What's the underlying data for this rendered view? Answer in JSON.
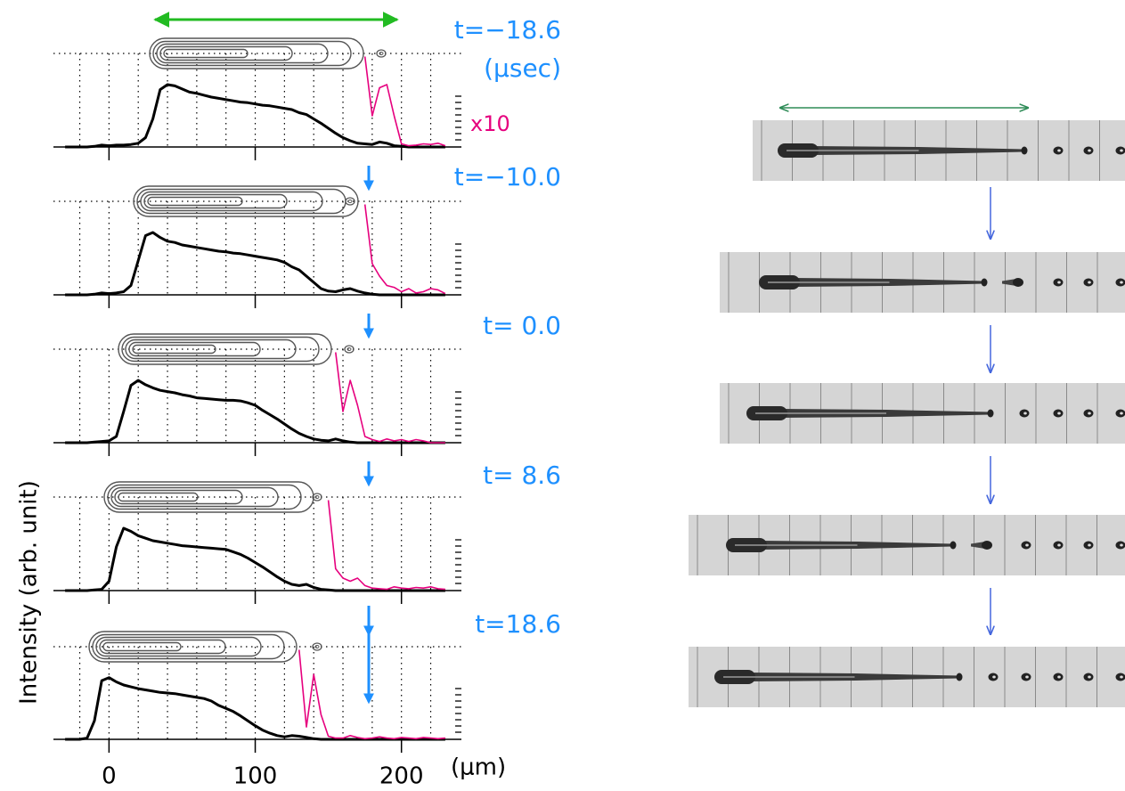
{
  "chart_data": [
    {
      "type": "line",
      "title": "t=−18.6",
      "annotations": [
        "(μsec)",
        "x10"
      ],
      "xlim": [
        -38,
        241
      ],
      "ylim": [
        0,
        1.5
      ],
      "xticks": [
        0,
        100,
        200
      ],
      "xtick_labels": false,
      "xgrid": [
        -20,
        0,
        20,
        40,
        60,
        80,
        100,
        120,
        140,
        160,
        180,
        200,
        220
      ],
      "x": [
        -30,
        -25,
        -20,
        -15,
        -10,
        -5,
        0,
        5,
        10,
        15,
        20,
        25,
        30,
        35,
        40,
        45,
        50,
        55,
        60,
        65,
        70,
        75,
        80,
        85,
        90,
        95,
        100,
        105,
        110,
        115,
        120,
        125,
        130,
        135,
        140,
        145,
        150,
        155,
        160,
        165,
        170,
        175,
        180,
        185,
        190,
        195,
        200,
        205,
        210,
        215,
        220,
        225,
        230
      ],
      "series": [
        {
          "color": "#000000",
          "values": [
            0,
            0,
            0,
            0,
            0.01,
            0.03,
            0.02,
            0.03,
            0.03,
            0.04,
            0.06,
            0.15,
            0.45,
            0.92,
            1.0,
            0.98,
            0.93,
            0.88,
            0.86,
            0.83,
            0.8,
            0.78,
            0.76,
            0.74,
            0.72,
            0.71,
            0.69,
            0.67,
            0.66,
            0.64,
            0.62,
            0.6,
            0.55,
            0.52,
            0.45,
            0.38,
            0.3,
            0.22,
            0.15,
            0.1,
            0.06,
            0.05,
            0.04,
            0.08,
            0.06,
            0.02,
            0.01,
            0,
            0,
            0,
            0,
            0,
            0
          ]
        },
        {
          "color": "#e6007e",
          "x": [
            175,
            180,
            185,
            190,
            195,
            200,
            205,
            210,
            215,
            220,
            225,
            230
          ],
          "values": [
            1.45,
            0.5,
            0.95,
            1.0,
            0.5,
            0.05,
            0.02,
            0.03,
            0.05,
            0.04,
            0.06,
            0.02
          ]
        }
      ]
    },
    {
      "type": "line",
      "title": "t=−10.0",
      "xlim": [
        -38,
        241
      ],
      "ylim": [
        0,
        1.5
      ],
      "xticks": [
        0,
        100,
        200
      ],
      "xtick_labels": false,
      "xgrid": [
        -20,
        0,
        20,
        40,
        60,
        80,
        100,
        120,
        140,
        160,
        180,
        200,
        220
      ],
      "x": [
        -30,
        -25,
        -20,
        -15,
        -10,
        -5,
        0,
        5,
        10,
        15,
        20,
        25,
        30,
        35,
        40,
        45,
        50,
        55,
        60,
        65,
        70,
        75,
        80,
        85,
        90,
        95,
        100,
        105,
        110,
        115,
        120,
        125,
        130,
        135,
        140,
        145,
        150,
        155,
        160,
        165,
        170,
        175,
        180,
        185,
        190,
        195,
        200,
        205,
        210,
        215,
        220,
        225,
        230
      ],
      "series": [
        {
          "color": "#000000",
          "values": [
            0,
            0,
            0,
            0,
            0.01,
            0.03,
            0.02,
            0.03,
            0.05,
            0.15,
            0.55,
            0.95,
            1.0,
            0.92,
            0.86,
            0.84,
            0.8,
            0.78,
            0.76,
            0.74,
            0.72,
            0.7,
            0.69,
            0.67,
            0.66,
            0.64,
            0.62,
            0.6,
            0.58,
            0.56,
            0.52,
            0.45,
            0.4,
            0.3,
            0.2,
            0.1,
            0.06,
            0.05,
            0.08,
            0.1,
            0.06,
            0.03,
            0.01,
            0,
            0,
            0,
            0,
            0,
            0,
            0,
            0,
            0,
            0
          ]
        },
        {
          "color": "#e6007e",
          "x": [
            175,
            180,
            185,
            190,
            195,
            200,
            205,
            210,
            215,
            220,
            225,
            230
          ],
          "values": [
            1.45,
            0.5,
            0.3,
            0.15,
            0.12,
            0.05,
            0.1,
            0.03,
            0.05,
            0.1,
            0.08,
            0.02
          ]
        }
      ]
    },
    {
      "type": "line",
      "title": "t= 0.0",
      "xlim": [
        -38,
        241
      ],
      "ylim": [
        0,
        1.5
      ],
      "xticks": [
        0,
        100,
        200
      ],
      "xtick_labels": false,
      "xgrid": [
        -20,
        0,
        20,
        40,
        60,
        80,
        100,
        120,
        140,
        160,
        180,
        200,
        220
      ],
      "x": [
        -30,
        -25,
        -20,
        -15,
        -10,
        -5,
        0,
        5,
        10,
        15,
        20,
        25,
        30,
        35,
        40,
        45,
        50,
        55,
        60,
        65,
        70,
        75,
        80,
        85,
        90,
        95,
        100,
        105,
        110,
        115,
        120,
        125,
        130,
        135,
        140,
        145,
        150,
        155,
        160,
        165,
        170,
        175,
        180,
        185,
        190,
        195,
        200,
        205,
        210,
        215,
        220,
        225,
        230
      ],
      "series": [
        {
          "color": "#000000",
          "values": [
            0,
            0,
            0,
            0,
            0.01,
            0.02,
            0.03,
            0.1,
            0.5,
            0.92,
            1.0,
            0.93,
            0.88,
            0.84,
            0.82,
            0.8,
            0.77,
            0.75,
            0.72,
            0.71,
            0.7,
            0.69,
            0.68,
            0.68,
            0.67,
            0.64,
            0.6,
            0.52,
            0.45,
            0.38,
            0.3,
            0.22,
            0.15,
            0.1,
            0.06,
            0.04,
            0.03,
            0.06,
            0.03,
            0.01,
            0,
            0,
            0,
            0,
            0,
            0,
            0,
            0,
            0,
            0,
            0,
            0,
            0
          ]
        },
        {
          "color": "#e6007e",
          "x": [
            155,
            160,
            165,
            170,
            175,
            180,
            185,
            190,
            195,
            200,
            205,
            210,
            215,
            220,
            225,
            230
          ],
          "values": [
            1.45,
            0.5,
            1.0,
            0.6,
            0.1,
            0.05,
            0.02,
            0.06,
            0.03,
            0.05,
            0.02,
            0.05,
            0.03,
            0,
            0,
            0
          ]
        }
      ]
    },
    {
      "type": "line",
      "title": "t= 8.6",
      "xlim": [
        -38,
        241
      ],
      "ylim": [
        0,
        1.5
      ],
      "xticks": [
        0,
        100,
        200
      ],
      "xtick_labels": false,
      "xgrid": [
        -20,
        0,
        20,
        40,
        60,
        80,
        100,
        120,
        140,
        160,
        180,
        200,
        220
      ],
      "x": [
        -30,
        -25,
        -20,
        -15,
        -10,
        -5,
        0,
        5,
        10,
        15,
        20,
        25,
        30,
        35,
        40,
        45,
        50,
        55,
        60,
        65,
        70,
        75,
        80,
        85,
        90,
        95,
        100,
        105,
        110,
        115,
        120,
        125,
        130,
        135,
        140,
        145,
        150,
        155,
        160,
        165,
        170,
        175,
        180,
        185,
        190,
        195,
        200,
        205,
        210,
        215,
        220,
        225,
        230
      ],
      "series": [
        {
          "color": "#000000",
          "values": [
            0,
            0,
            0,
            0,
            0.01,
            0.02,
            0.15,
            0.7,
            1.0,
            0.95,
            0.88,
            0.84,
            0.8,
            0.78,
            0.76,
            0.74,
            0.72,
            0.71,
            0.7,
            0.69,
            0.68,
            0.67,
            0.66,
            0.62,
            0.58,
            0.52,
            0.45,
            0.38,
            0.3,
            0.22,
            0.15,
            0.1,
            0.08,
            0.1,
            0.05,
            0.02,
            0.01,
            0,
            0,
            0,
            0,
            0,
            0,
            0,
            0,
            0,
            0,
            0,
            0,
            0,
            0,
            0,
            0
          ]
        },
        {
          "color": "#e6007e",
          "x": [
            150,
            155,
            160,
            165,
            170,
            175,
            180,
            185,
            190,
            195,
            200,
            205,
            210,
            215,
            220,
            225,
            230
          ],
          "values": [
            1.45,
            0.35,
            0.2,
            0.15,
            0.2,
            0.08,
            0.04,
            0.03,
            0.02,
            0.06,
            0.04,
            0.03,
            0.05,
            0.04,
            0.06,
            0.03,
            0.02
          ]
        }
      ]
    },
    {
      "type": "line",
      "title": "t=18.6",
      "xlabel": "(μm)",
      "ylabel": "Intensity (arb. unit)",
      "xlim": [
        -38,
        241
      ],
      "ylim": [
        0,
        1.5
      ],
      "xticks": [
        0,
        100,
        200
      ],
      "xtick_labels": true,
      "xgrid": [
        -20,
        0,
        20,
        40,
        60,
        80,
        100,
        120,
        140,
        160,
        180,
        200,
        220
      ],
      "x": [
        -30,
        -25,
        -20,
        -15,
        -10,
        -5,
        0,
        5,
        10,
        15,
        20,
        25,
        30,
        35,
        40,
        45,
        50,
        55,
        60,
        65,
        70,
        75,
        80,
        85,
        90,
        95,
        100,
        105,
        110,
        115,
        120,
        125,
        130,
        135,
        140,
        145,
        150,
        155,
        160,
        165,
        170,
        175,
        180,
        185,
        190,
        195,
        200,
        205,
        210,
        215,
        220,
        225,
        230
      ],
      "series": [
        {
          "color": "#000000",
          "values": [
            0,
            0,
            0,
            0.02,
            0.3,
            0.95,
            1.0,
            0.93,
            0.88,
            0.85,
            0.82,
            0.8,
            0.78,
            0.76,
            0.75,
            0.74,
            0.72,
            0.7,
            0.68,
            0.66,
            0.62,
            0.55,
            0.5,
            0.45,
            0.38,
            0.3,
            0.22,
            0.15,
            0.1,
            0.06,
            0.04,
            0.06,
            0.05,
            0.03,
            0.01,
            0,
            0,
            0,
            0,
            0,
            0,
            0,
            0,
            0,
            0,
            0,
            0,
            0,
            0,
            0,
            0,
            0,
            0
          ]
        },
        {
          "color": "#e6007e",
          "x": [
            130,
            135,
            140,
            145,
            150,
            155,
            160,
            165,
            170,
            175,
            180,
            185,
            190,
            195,
            200,
            205,
            210,
            215,
            220,
            225,
            230
          ],
          "values": [
            1.45,
            0.2,
            1.05,
            0.4,
            0.05,
            0.02,
            0.02,
            0.06,
            0.03,
            0.01,
            0.02,
            0.04,
            0.02,
            0.01,
            0.03,
            0.02,
            0.01,
            0.03,
            0.02,
            0.01,
            0.02
          ]
        }
      ]
    }
  ]
}
